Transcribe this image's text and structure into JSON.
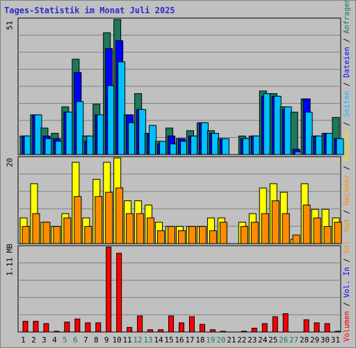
{
  "title": "Tages-Statistik im Monat Juli 2025",
  "colors": {
    "background": "#c0c0c0",
    "plot_bg": "#c0c0c0",
    "grid": "#808080",
    "hits": "#1b7a5a",
    "files": "#0000ff",
    "pages": "#00c0ff",
    "visits": "#ffff00",
    "sites": "#ff8c00",
    "kbytes": "#ff0000",
    "weekend_label": "#1b7a5a",
    "title": "#2b2bcc"
  },
  "legends": {
    "top": [
      {
        "label": "Anfragen",
        "color": "#1b7a5a"
      },
      {
        "sep": " / "
      },
      {
        "label": "Dateien",
        "color": "#0000ff"
      },
      {
        "sep": " / "
      },
      {
        "label": "Seiten",
        "color": "#00c0ff"
      },
      {
        "sep": " / "
      },
      {
        "label": "Besuche",
        "color": "#e6e600"
      },
      {
        "sep": " / "
      },
      {
        "label": "Rechner",
        "color": "#ff8c00"
      },
      {
        "sep": " / "
      },
      {
        "label": "Vol. Out",
        "color": "#ff8c00"
      },
      {
        "sep": " / "
      },
      {
        "label": "Vol. In",
        "color": "#0000ff"
      },
      {
        "sep": " / "
      },
      {
        "label": "Volumen",
        "color": "#ff0000"
      }
    ]
  },
  "chart_data": [
    {
      "type": "bar",
      "panel": "requests",
      "ymax_label": "51",
      "ylim": [
        0,
        51
      ],
      "categories": [
        "1",
        "2",
        "3",
        "4",
        "5",
        "6",
        "7",
        "8",
        "9",
        "10",
        "11",
        "12",
        "13",
        "14",
        "15",
        "16",
        "17",
        "18",
        "19",
        "20",
        "21",
        "22",
        "23",
        "24",
        "25",
        "26",
        "27",
        "28",
        "29",
        "30",
        "31"
      ],
      "weekend_days": [
        "5",
        "6",
        "12",
        "13",
        "19",
        "20",
        "26",
        "27"
      ],
      "series": [
        {
          "key": "hits",
          "values": [
            7,
            15,
            10,
            8,
            18,
            36,
            7,
            19,
            46,
            51,
            15,
            23,
            8,
            5,
            10,
            6,
            9,
            12,
            9,
            6,
            0,
            7,
            7,
            24,
            23,
            18,
            16,
            21,
            7,
            8,
            14
          ]
        },
        {
          "key": "files",
          "values": [
            7,
            15,
            7,
            6,
            16,
            31,
            5,
            15,
            40,
            43,
            15,
            17,
            8,
            4,
            7,
            6,
            7,
            12,
            8,
            6,
            0,
            6,
            7,
            22,
            22,
            17,
            2,
            21,
            7,
            8,
            6
          ]
        },
        {
          "key": "pages",
          "values": [
            7,
            15,
            6,
            5,
            16,
            20,
            7,
            15,
            26,
            35,
            12,
            17,
            11,
            5,
            4,
            5,
            7,
            12,
            8,
            6,
            0,
            6,
            7,
            23,
            22,
            18,
            1,
            16,
            7,
            8,
            6
          ]
        }
      ]
    },
    {
      "type": "bar",
      "panel": "visits",
      "ymax_label": "20",
      "ylim": [
        0,
        20
      ],
      "categories": [
        "1",
        "2",
        "3",
        "4",
        "5",
        "6",
        "7",
        "8",
        "9",
        "10",
        "11",
        "12",
        "13",
        "14",
        "15",
        "16",
        "17",
        "18",
        "19",
        "20",
        "21",
        "22",
        "23",
        "24",
        "25",
        "26",
        "27",
        "28",
        "29",
        "30",
        "31"
      ],
      "series": [
        {
          "key": "visits",
          "values": [
            6,
            14,
            5,
            4,
            7,
            19,
            6,
            15,
            19,
            20,
            10,
            10,
            9,
            5,
            4,
            4,
            4,
            4,
            6,
            6,
            0,
            5,
            7,
            13,
            14,
            12,
            1,
            14,
            8,
            8,
            6
          ]
        },
        {
          "key": "sites",
          "values": [
            4,
            7,
            5,
            4,
            6,
            11,
            4,
            11,
            12,
            13,
            7,
            7,
            6,
            3,
            4,
            3,
            4,
            4,
            3,
            5,
            0,
            4,
            5,
            7,
            10,
            7,
            2,
            9,
            6,
            4,
            5
          ]
        }
      ]
    },
    {
      "type": "bar",
      "panel": "volume",
      "ymax_label": "1.11 MB",
      "ylim": [
        0,
        1.11
      ],
      "categories": [
        "1",
        "2",
        "3",
        "4",
        "5",
        "6",
        "7",
        "8",
        "9",
        "10",
        "11",
        "12",
        "13",
        "14",
        "15",
        "16",
        "17",
        "18",
        "19",
        "20",
        "21",
        "22",
        "23",
        "24",
        "25",
        "26",
        "27",
        "28",
        "29",
        "30",
        "31"
      ],
      "series": [
        {
          "key": "kbytes",
          "values": [
            0.14,
            0.14,
            0.11,
            0.01,
            0.13,
            0.17,
            0.12,
            0.12,
            1.11,
            1.03,
            0.06,
            0.21,
            0.03,
            0.03,
            0.21,
            0.12,
            0.2,
            0.1,
            0.03,
            0.01,
            0,
            0.01,
            0.05,
            0.11,
            0.2,
            0.24,
            0,
            0.16,
            0.12,
            0.11,
            0.01
          ]
        }
      ]
    }
  ]
}
